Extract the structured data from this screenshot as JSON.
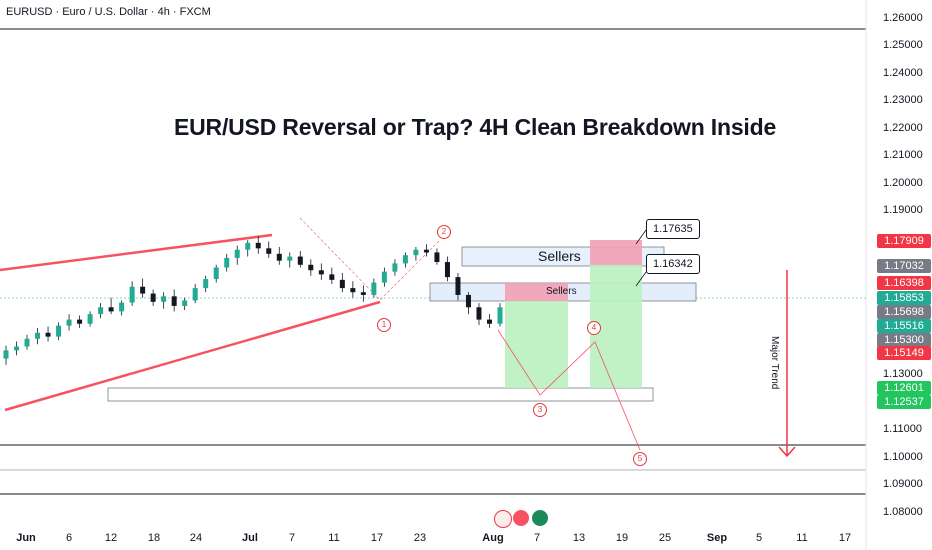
{
  "header": {
    "symbol_line": "EURUSD · Euro / U.S. Dollar · 4h · FXCM"
  },
  "chart_data": {
    "type": "candlestick",
    "title": "EUR/USD Reversal or Trap? 4H Clean Breakdown Inside",
    "y_ticks": [
      "1.26000",
      "1.25000",
      "1.24000",
      "1.23000",
      "1.22000",
      "1.21000",
      "1.20000",
      "1.19000",
      "1.13000",
      "1.11000",
      "1.10000",
      "1.09000",
      "1.08000"
    ],
    "x_ticks": [
      "Jun",
      "6",
      "12",
      "18",
      "24",
      "Jul",
      "7",
      "11",
      "17",
      "23",
      "Aug",
      "7",
      "13",
      "19",
      "25",
      "Sep",
      "5",
      "11",
      "17"
    ],
    "price_labels": [
      {
        "value": "1.17909",
        "color": "#f23645"
      },
      {
        "value": "1.17032",
        "color": "#787b86"
      },
      {
        "value": "1.16398",
        "color": "#f23645"
      },
      {
        "value": "1.15853",
        "color": "#22ab94"
      },
      {
        "value": "1.15698",
        "color": "#787b86"
      },
      {
        "value": "1.15516",
        "color": "#22ab94"
      },
      {
        "value": "1.15300",
        "color": "#787b86"
      },
      {
        "value": "1.15149",
        "color": "#f23645"
      },
      {
        "value": "1.12601",
        "color": "#22c55e"
      },
      {
        "value": "1.12537",
        "color": "#22c55e"
      }
    ],
    "annotations": {
      "callout_1": "1.17635",
      "callout_2": "1.16342",
      "sellers_upper": "Sellers",
      "sellers_lower": "Sellers",
      "trend": "Major Trend",
      "waves": [
        "1",
        "2",
        "3",
        "4",
        "5"
      ]
    },
    "candles": [
      [
        1.1358,
        1.1405,
        1.1335,
        1.1388
      ],
      [
        1.1388,
        1.142,
        1.137,
        1.1402
      ],
      [
        1.1402,
        1.1445,
        1.139,
        1.143
      ],
      [
        1.143,
        1.147,
        1.141,
        1.1452
      ],
      [
        1.1452,
        1.1475,
        1.142,
        1.1438
      ],
      [
        1.1438,
        1.149,
        1.1425,
        1.1478
      ],
      [
        1.1478,
        1.152,
        1.146,
        1.15
      ],
      [
        1.15,
        1.1515,
        1.147,
        1.1485
      ],
      [
        1.1485,
        1.153,
        1.1475,
        1.152
      ],
      [
        1.152,
        1.156,
        1.1505,
        1.1545
      ],
      [
        1.1545,
        1.158,
        1.152,
        1.153
      ],
      [
        1.153,
        1.157,
        1.1515,
        1.1562
      ],
      [
        1.1562,
        1.164,
        1.155,
        1.162
      ],
      [
        1.162,
        1.165,
        1.158,
        1.1595
      ],
      [
        1.1595,
        1.161,
        1.155,
        1.1565
      ],
      [
        1.1565,
        1.16,
        1.154,
        1.1585
      ],
      [
        1.1585,
        1.161,
        1.153,
        1.155
      ],
      [
        1.155,
        1.158,
        1.1535,
        1.157
      ],
      [
        1.157,
        1.163,
        1.156,
        1.1615
      ],
      [
        1.1615,
        1.166,
        1.16,
        1.1648
      ],
      [
        1.1648,
        1.17,
        1.1635,
        1.169
      ],
      [
        1.169,
        1.174,
        1.1675,
        1.1725
      ],
      [
        1.1725,
        1.177,
        1.17,
        1.1755
      ],
      [
        1.1755,
        1.179,
        1.173,
        1.178
      ],
      [
        1.178,
        1.1805,
        1.174,
        1.176
      ],
      [
        1.176,
        1.1785,
        1.1725,
        1.174
      ],
      [
        1.174,
        1.1765,
        1.17,
        1.1715
      ],
      [
        1.1715,
        1.1745,
        1.169,
        1.173
      ],
      [
        1.173,
        1.175,
        1.169,
        1.17
      ],
      [
        1.17,
        1.172,
        1.166,
        1.168
      ],
      [
        1.168,
        1.1705,
        1.1645,
        1.1665
      ],
      [
        1.1665,
        1.169,
        1.163,
        1.1645
      ],
      [
        1.1645,
        1.167,
        1.16,
        1.1615
      ],
      [
        1.1615,
        1.164,
        1.158,
        1.16
      ],
      [
        1.16,
        1.1625,
        1.1565,
        1.159
      ],
      [
        1.159,
        1.165,
        1.158,
        1.1635
      ],
      [
        1.1635,
        1.169,
        1.162,
        1.1675
      ],
      [
        1.1675,
        1.172,
        1.166,
        1.1705
      ],
      [
        1.1705,
        1.1745,
        1.169,
        1.1735
      ],
      [
        1.1735,
        1.1765,
        1.1715,
        1.1755
      ],
      [
        1.1755,
        1.1775,
        1.173,
        1.1745
      ],
      [
        1.1745,
        1.176,
        1.17,
        1.171
      ],
      [
        1.171,
        1.173,
        1.164,
        1.1655
      ],
      [
        1.1655,
        1.167,
        1.157,
        1.159
      ],
      [
        1.159,
        1.16,
        1.152,
        1.1545
      ],
      [
        1.1545,
        1.156,
        1.148,
        1.15
      ],
      [
        1.15,
        1.152,
        1.147,
        1.1485
      ],
      [
        1.1485,
        1.156,
        1.1475,
        1.1545
      ]
    ]
  }
}
